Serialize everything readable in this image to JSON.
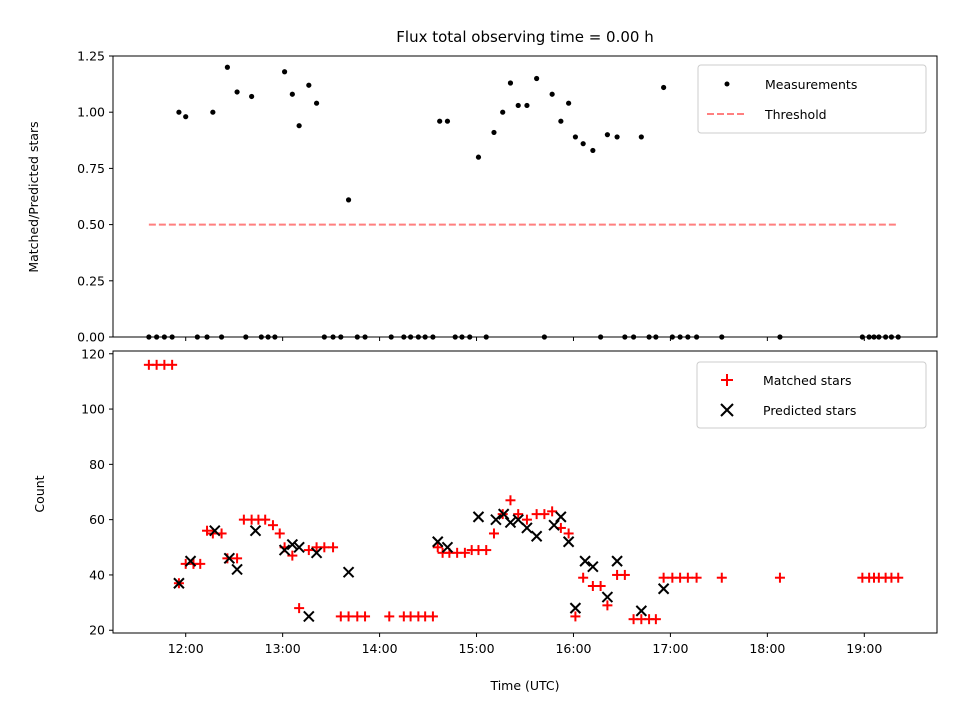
{
  "chart_data": [
    {
      "type": "scatter",
      "title": "Flux total observing time = 0.00 h",
      "xlabel": "",
      "ylabel": "Matched/Predicted stars",
      "xlim": [
        11.25,
        19.75
      ],
      "ylim": [
        0,
        1.25
      ],
      "xticks": [
        12,
        13,
        14,
        15,
        16,
        17,
        18,
        19
      ],
      "yticks": [
        0.0,
        0.25,
        0.5,
        0.75,
        1.0,
        1.25
      ],
      "ytick_labels": [
        "0.00",
        "0.25",
        "0.50",
        "0.75",
        "1.00",
        "1.25"
      ],
      "legend_position": "top-right",
      "legend": [
        "Measurements",
        "Threshold"
      ],
      "threshold": {
        "name": "Threshold",
        "y": 0.5,
        "x_range": [
          11.62,
          19.35
        ],
        "color": "#ff7f7f",
        "style": "dashed"
      },
      "series": [
        {
          "name": "Measurements",
          "color": "#000000",
          "marker": "dot",
          "x": [
            11.62,
            11.7,
            11.78,
            11.86,
            11.93,
            12.0,
            12.12,
            12.22,
            12.28,
            12.37,
            12.43,
            12.53,
            12.62,
            12.68,
            12.78,
            12.85,
            12.92,
            13.02,
            13.1,
            13.17,
            13.27,
            13.35,
            13.43,
            13.52,
            13.6,
            13.68,
            13.77,
            13.85,
            14.12,
            14.25,
            14.32,
            14.4,
            14.47,
            14.55,
            14.62,
            14.7,
            14.78,
            14.85,
            14.93,
            15.02,
            15.1,
            15.18,
            15.27,
            15.35,
            15.43,
            15.52,
            15.62,
            15.7,
            15.78,
            15.87,
            15.95,
            16.02,
            16.1,
            16.2,
            16.28,
            16.35,
            16.45,
            16.53,
            16.62,
            16.7,
            16.78,
            16.85,
            16.93,
            17.02,
            17.1,
            17.18,
            17.27,
            17.53,
            18.13,
            18.98,
            19.05,
            19.1,
            19.15,
            19.22,
            19.28,
            19.35
          ],
          "y": [
            0,
            0,
            0,
            0,
            1.0,
            0.98,
            0,
            0,
            1.0,
            0,
            1.2,
            1.09,
            0,
            1.07,
            0,
            0,
            0,
            1.18,
            1.08,
            0.94,
            1.12,
            1.04,
            0,
            0,
            0,
            0.61,
            0,
            0,
            0,
            0,
            0,
            0,
            0,
            0,
            0.96,
            0.96,
            0,
            0,
            0,
            0.8,
            0,
            0.91,
            1.0,
            1.13,
            1.03,
            1.03,
            1.15,
            0,
            1.08,
            0.96,
            1.04,
            0.89,
            0.86,
            0.83,
            0,
            0.9,
            0.89,
            0,
            0,
            0.89,
            0,
            0,
            1.11,
            0,
            0,
            0,
            0,
            0,
            0,
            0,
            0,
            0,
            0,
            0,
            0,
            0
          ]
        }
      ]
    },
    {
      "type": "scatter",
      "title": "",
      "xlabel": "Time (UTC)",
      "ylabel": "Count",
      "xlim": [
        11.25,
        19.75
      ],
      "ylim": [
        19,
        121
      ],
      "xticks": [
        12,
        13,
        14,
        15,
        16,
        17,
        18,
        19
      ],
      "xtick_labels": [
        "12:00",
        "13:00",
        "14:00",
        "15:00",
        "16:00",
        "17:00",
        "18:00",
        "19:00"
      ],
      "yticks": [
        20,
        40,
        60,
        80,
        100,
        120
      ],
      "ytick_labels": [
        "20",
        "40",
        "60",
        "80",
        "100",
        "120"
      ],
      "legend_position": "top-right",
      "legend": [
        "Matched stars",
        "Predicted stars"
      ],
      "series": [
        {
          "name": "Matched stars",
          "color": "#ff0000",
          "marker": "plus",
          "x": [
            11.62,
            11.7,
            11.78,
            11.86,
            11.93,
            12.0,
            12.08,
            12.15,
            12.22,
            12.28,
            12.37,
            12.43,
            12.53,
            12.6,
            12.68,
            12.75,
            12.82,
            12.9,
            12.97,
            13.02,
            13.1,
            13.17,
            13.27,
            13.35,
            13.43,
            13.52,
            13.6,
            13.68,
            13.77,
            13.85,
            14.1,
            14.25,
            14.32,
            14.4,
            14.47,
            14.55,
            14.6,
            14.65,
            14.72,
            14.8,
            14.88,
            14.95,
            15.02,
            15.1,
            15.18,
            15.27,
            15.35,
            15.43,
            15.52,
            15.62,
            15.7,
            15.78,
            15.87,
            15.95,
            16.02,
            16.1,
            16.2,
            16.28,
            16.35,
            16.45,
            16.53,
            16.62,
            16.7,
            16.78,
            16.85,
            16.93,
            17.02,
            17.1,
            17.18,
            17.27,
            17.53,
            18.13,
            18.98,
            19.05,
            19.1,
            19.15,
            19.22,
            19.28,
            19.35
          ],
          "y": [
            116,
            116,
            116,
            116,
            37,
            44,
            44,
            44,
            56,
            55,
            55,
            46,
            46,
            60,
            60,
            60,
            60,
            58,
            55,
            50,
            47,
            28,
            49,
            50,
            50,
            50,
            25,
            25,
            25,
            25,
            25,
            25,
            25,
            25,
            25,
            25,
            50,
            48,
            48,
            48,
            48,
            49,
            49,
            49,
            55,
            62,
            67,
            62,
            60,
            62,
            62,
            63,
            57,
            55,
            25,
            39,
            36,
            36,
            29,
            40,
            40,
            24,
            24,
            24,
            24,
            39,
            39,
            39,
            39,
            39,
            39,
            39,
            39,
            39,
            39,
            39,
            39,
            39,
            39
          ]
        },
        {
          "name": "Predicted stars",
          "color": "#000000",
          "marker": "x",
          "x": [
            11.93,
            12.05,
            12.3,
            12.45,
            12.53,
            12.72,
            13.02,
            13.1,
            13.17,
            13.27,
            13.35,
            13.68,
            14.6,
            14.7,
            15.02,
            15.2,
            15.28,
            15.35,
            15.43,
            15.52,
            15.62,
            15.8,
            15.87,
            15.95,
            16.02,
            16.12,
            16.2,
            16.35,
            16.45,
            16.7,
            16.93
          ],
          "y": [
            37,
            45,
            56,
            46,
            42,
            56,
            49,
            51,
            50,
            25,
            48,
            41,
            52,
            50,
            61,
            60,
            62,
            59,
            60,
            57,
            54,
            58,
            61,
            52,
            28,
            45,
            43,
            32,
            45,
            27,
            35
          ]
        }
      ]
    }
  ]
}
